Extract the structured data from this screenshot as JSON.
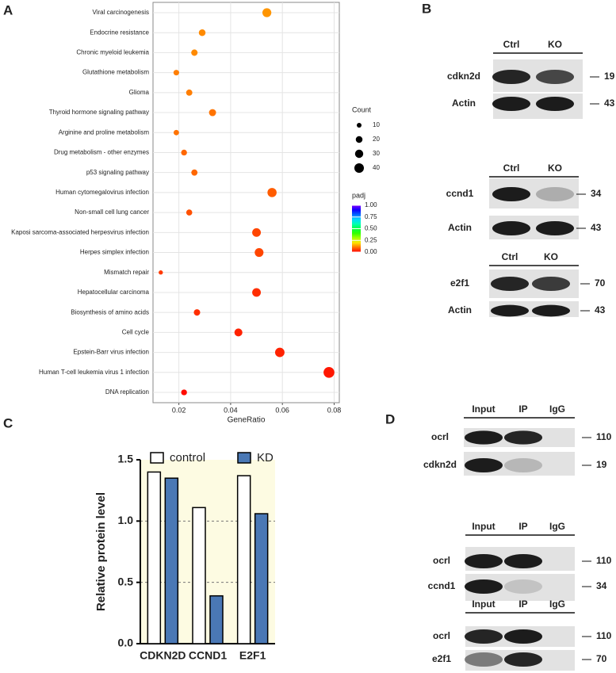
{
  "chart_data": [
    {
      "panel": "A",
      "type": "dot",
      "xlabel": "GeneRatio",
      "categories": [
        "Viral carcinogenesis",
        "Endocrine resistance",
        "Chronic myeloid leukemia",
        "Glutathione metabolism",
        "Glioma",
        "Thyroid hormone signaling pathway",
        "Arginine and proline metabolism",
        "Drug metabolism - other enzymes",
        "p53 signaling pathway",
        "Human cytomegalovirus infection",
        "Non-small cell lung cancer",
        "Kaposi sarcoma-associated herpesvirus infection",
        "Herpes simplex infection",
        "Mismatch repair",
        "Hepatocellular carcinoma",
        "Biosynthesis of amino acids",
        "Cell cycle",
        "Epstein-Barr virus infection",
        "Human T-cell leukemia virus 1 infection",
        "DNA replication"
      ],
      "values": [
        0.054,
        0.029,
        0.026,
        0.019,
        0.024,
        0.033,
        0.019,
        0.022,
        0.026,
        0.056,
        0.024,
        0.05,
        0.051,
        0.013,
        0.05,
        0.027,
        0.043,
        0.059,
        0.078,
        0.022
      ],
      "count": [
        35,
        20,
        18,
        14,
        17,
        22,
        13,
        15,
        17,
        37,
        16,
        33,
        34,
        8,
        33,
        18,
        28,
        39,
        52,
        15
      ],
      "padj": [
        0.13,
        0.12,
        0.12,
        0.11,
        0.11,
        0.1,
        0.1,
        0.09,
        0.09,
        0.08,
        0.07,
        0.06,
        0.06,
        0.05,
        0.04,
        0.04,
        0.03,
        0.03,
        0.02,
        0.01
      ],
      "xlim": [
        0.01,
        0.082
      ],
      "xticks": [
        0.02,
        0.04,
        0.06,
        0.08
      ],
      "grid": true,
      "size_title": "Count",
      "size_ticks": [
        10,
        20,
        30,
        40
      ],
      "color_title": "padj",
      "color_lim": [
        0,
        1
      ],
      "color_ticks": [
        {
          "value": 0,
          "label": "0.00"
        },
        {
          "value": 0.25,
          "label": "0.25"
        },
        {
          "value": 0.5,
          "label": "0.50"
        },
        {
          "value": 0.75,
          "label": "0.75"
        },
        {
          "value": 1,
          "label": "1.00"
        }
      ]
    },
    {
      "panel": "C",
      "type": "bar",
      "ylabel": "Relative protein level",
      "categories": [
        "CDKN2D",
        "CCND1",
        "E2F1"
      ],
      "series": [
        {
          "name": "control",
          "color": "#ffffff",
          "values": [
            1.4,
            1.11,
            1.37
          ]
        },
        {
          "name": "KD",
          "color": "#4a78b5",
          "values": [
            1.35,
            0.39,
            1.06
          ]
        }
      ],
      "ylim": [
        0,
        1.5
      ],
      "yticks": [
        {
          "value": 0,
          "label": "0.0"
        },
        {
          "value": 0.5,
          "label": "0.5"
        },
        {
          "value": 1,
          "label": "1.0"
        },
        {
          "value": 1.5,
          "label": "1.5"
        }
      ],
      "grid_lines": [
        0.5,
        1
      ]
    }
  ],
  "blots": [
    {
      "panel": "B",
      "groups": [
        {
          "lanes": [
            "Ctrl",
            "KO"
          ],
          "rows": [
            {
              "label": "cdkn2d",
              "marker": 19
            },
            {
              "label": "Actin",
              "marker": 43
            }
          ]
        },
        {
          "lanes": [
            "Ctrl",
            "KO"
          ],
          "rows": [
            {
              "label": "ccnd1",
              "marker": 34
            },
            {
              "label": "Actin",
              "marker": 43
            }
          ]
        },
        {
          "lanes": [
            "Ctrl",
            "KO"
          ],
          "rows": [
            {
              "label": "e2f1",
              "marker": 70
            },
            {
              "label": "Actin",
              "marker": 43
            }
          ]
        }
      ]
    },
    {
      "panel": "D",
      "groups": [
        {
          "lanes": [
            "Input",
            "IP",
            "IgG"
          ],
          "rows": [
            {
              "label": "ocrl",
              "marker": 110
            },
            {
              "label": "cdkn2d",
              "marker": 19
            }
          ]
        },
        {
          "lanes": [
            "Input",
            "IP",
            "IgG"
          ],
          "rows": [
            {
              "label": "ocrl",
              "marker": 110
            },
            {
              "label": "ccnd1",
              "marker": 34
            }
          ]
        },
        {
          "lanes": [
            "Input",
            "IP",
            "IgG"
          ],
          "rows": [
            {
              "label": "ocrl",
              "marker": 110
            },
            {
              "label": "e2f1",
              "marker": 70
            }
          ]
        }
      ]
    }
  ]
}
